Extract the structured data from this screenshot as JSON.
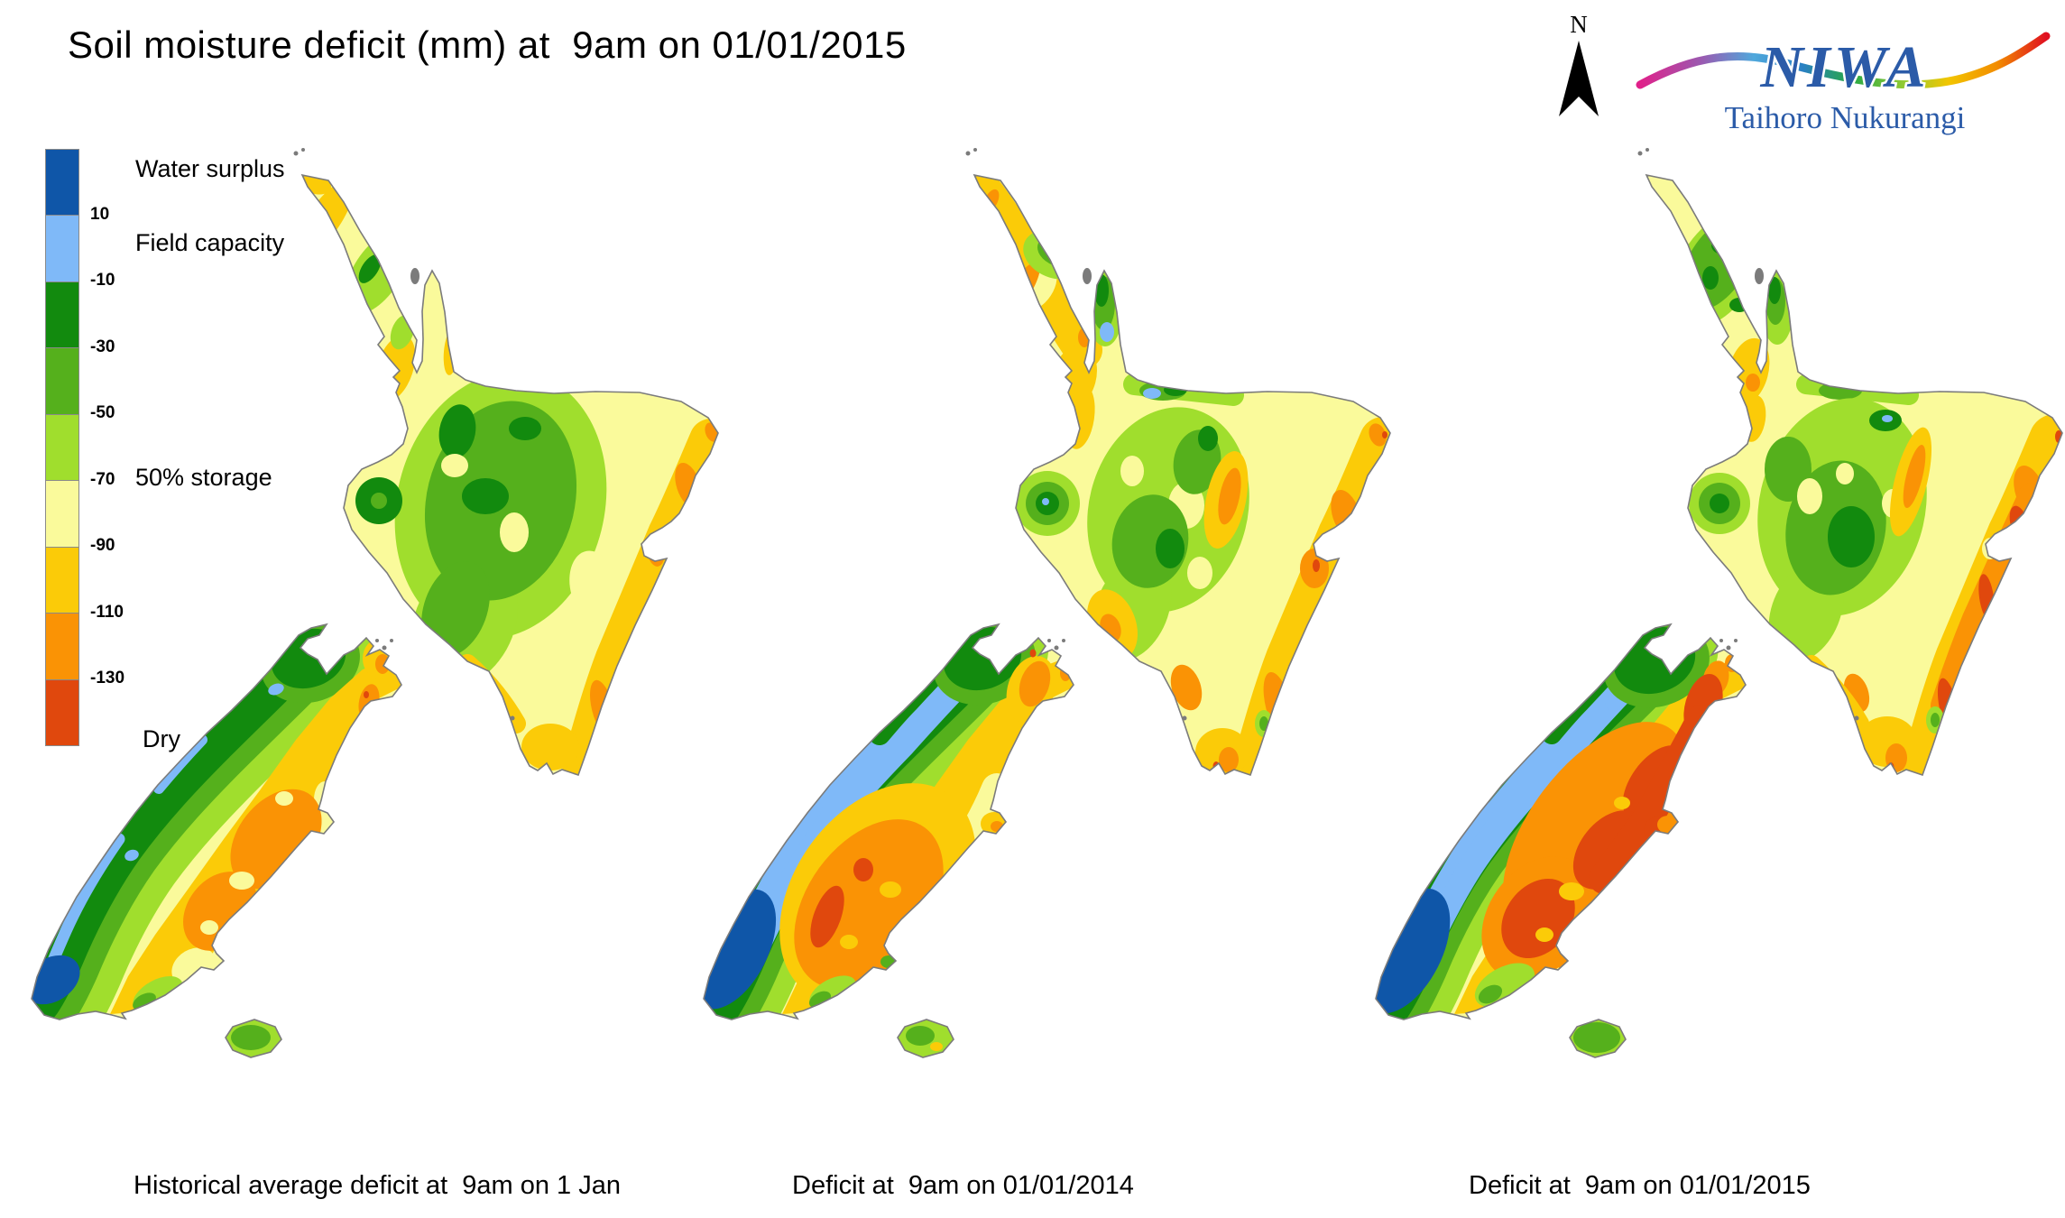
{
  "title": "Soil moisture deficit (mm) at  9am on 01/01/2015",
  "compass": {
    "label": "N"
  },
  "logo": {
    "acronym": "NIWA",
    "subtitle": "Taihoro Nukurangi",
    "color": "#2B5BA8"
  },
  "legend": {
    "bands": [
      {
        "key": "water_surplus",
        "color": "#0F56A8"
      },
      {
        "key": "field_capacity",
        "color": "#7FB9F8"
      },
      {
        "key": "green_dark",
        "color": "#128A0E"
      },
      {
        "key": "green_mid",
        "color": "#55B01C"
      },
      {
        "key": "green_light",
        "color": "#A0DE2D"
      },
      {
        "key": "yellow_pale",
        "color": "#FAFA9B"
      },
      {
        "key": "gold",
        "color": "#FBCB08"
      },
      {
        "key": "orange",
        "color": "#FA9305"
      },
      {
        "key": "red",
        "color": "#E0480D"
      }
    ],
    "ticks": [
      "10",
      "-10",
      "-30",
      "-50",
      "-70",
      "-90",
      "-110",
      "-130"
    ],
    "labels": {
      "water_surplus": "Water surplus",
      "field_capacity": "Field capacity",
      "storage_50": "50% storage",
      "dry": "Dry"
    }
  },
  "colors": {
    "coast": "#7B7B7B",
    "text": "#000000",
    "logo_blue": "#2B5BA8"
  },
  "maps": [
    {
      "id": "historical",
      "caption": "Historical average deficit at  9am on 1 Jan"
    },
    {
      "id": "y2014",
      "caption": "Deficit at  9am on 01/01/2014"
    },
    {
      "id": "y2015",
      "caption": "Deficit at  9am on 01/01/2015"
    }
  ],
  "chart_data": {
    "type": "heatmap",
    "subtype": "filled-contour-map-series",
    "region": "New Zealand",
    "variable": "Soil moisture deficit (mm) at 9am",
    "scale_breaks_mm": [
      10,
      -10,
      -30,
      -50,
      -70,
      -90,
      -110,
      -130
    ],
    "scale_meaning": [
      "Water surplus",
      "Field capacity",
      "",
      "",
      "",
      "50% storage",
      "",
      "",
      "Dry"
    ],
    "panels": [
      {
        "caption": "Historical average deficit at  9am on 1 Jan",
        "summary": "West Coast and central North Island green/moist; Fiordland dark blue (water surplus); east coasts of both islands gold with orange patches in Canterbury, inland Otago, Gisborne and Hawke's Bay."
      },
      {
        "caption": "Deficit at  9am on 01/01/2014",
        "summary": "Drier than average: light-blue field-capacity band along the Southern Alps, orange core with red patches in inland Otago/Canterbury, orange-red strip on Northland west coast, more gold across the North Island."
      },
      {
        "caption": "Deficit at  9am on 01/01/2015",
        "summary": "Severely dry east: red (deficit beyond -130 mm) over Marlborough, Canterbury and inland Otago and along the North Island east coast; greens confined to Northland, central plateau and the West Coast."
      }
    ]
  }
}
